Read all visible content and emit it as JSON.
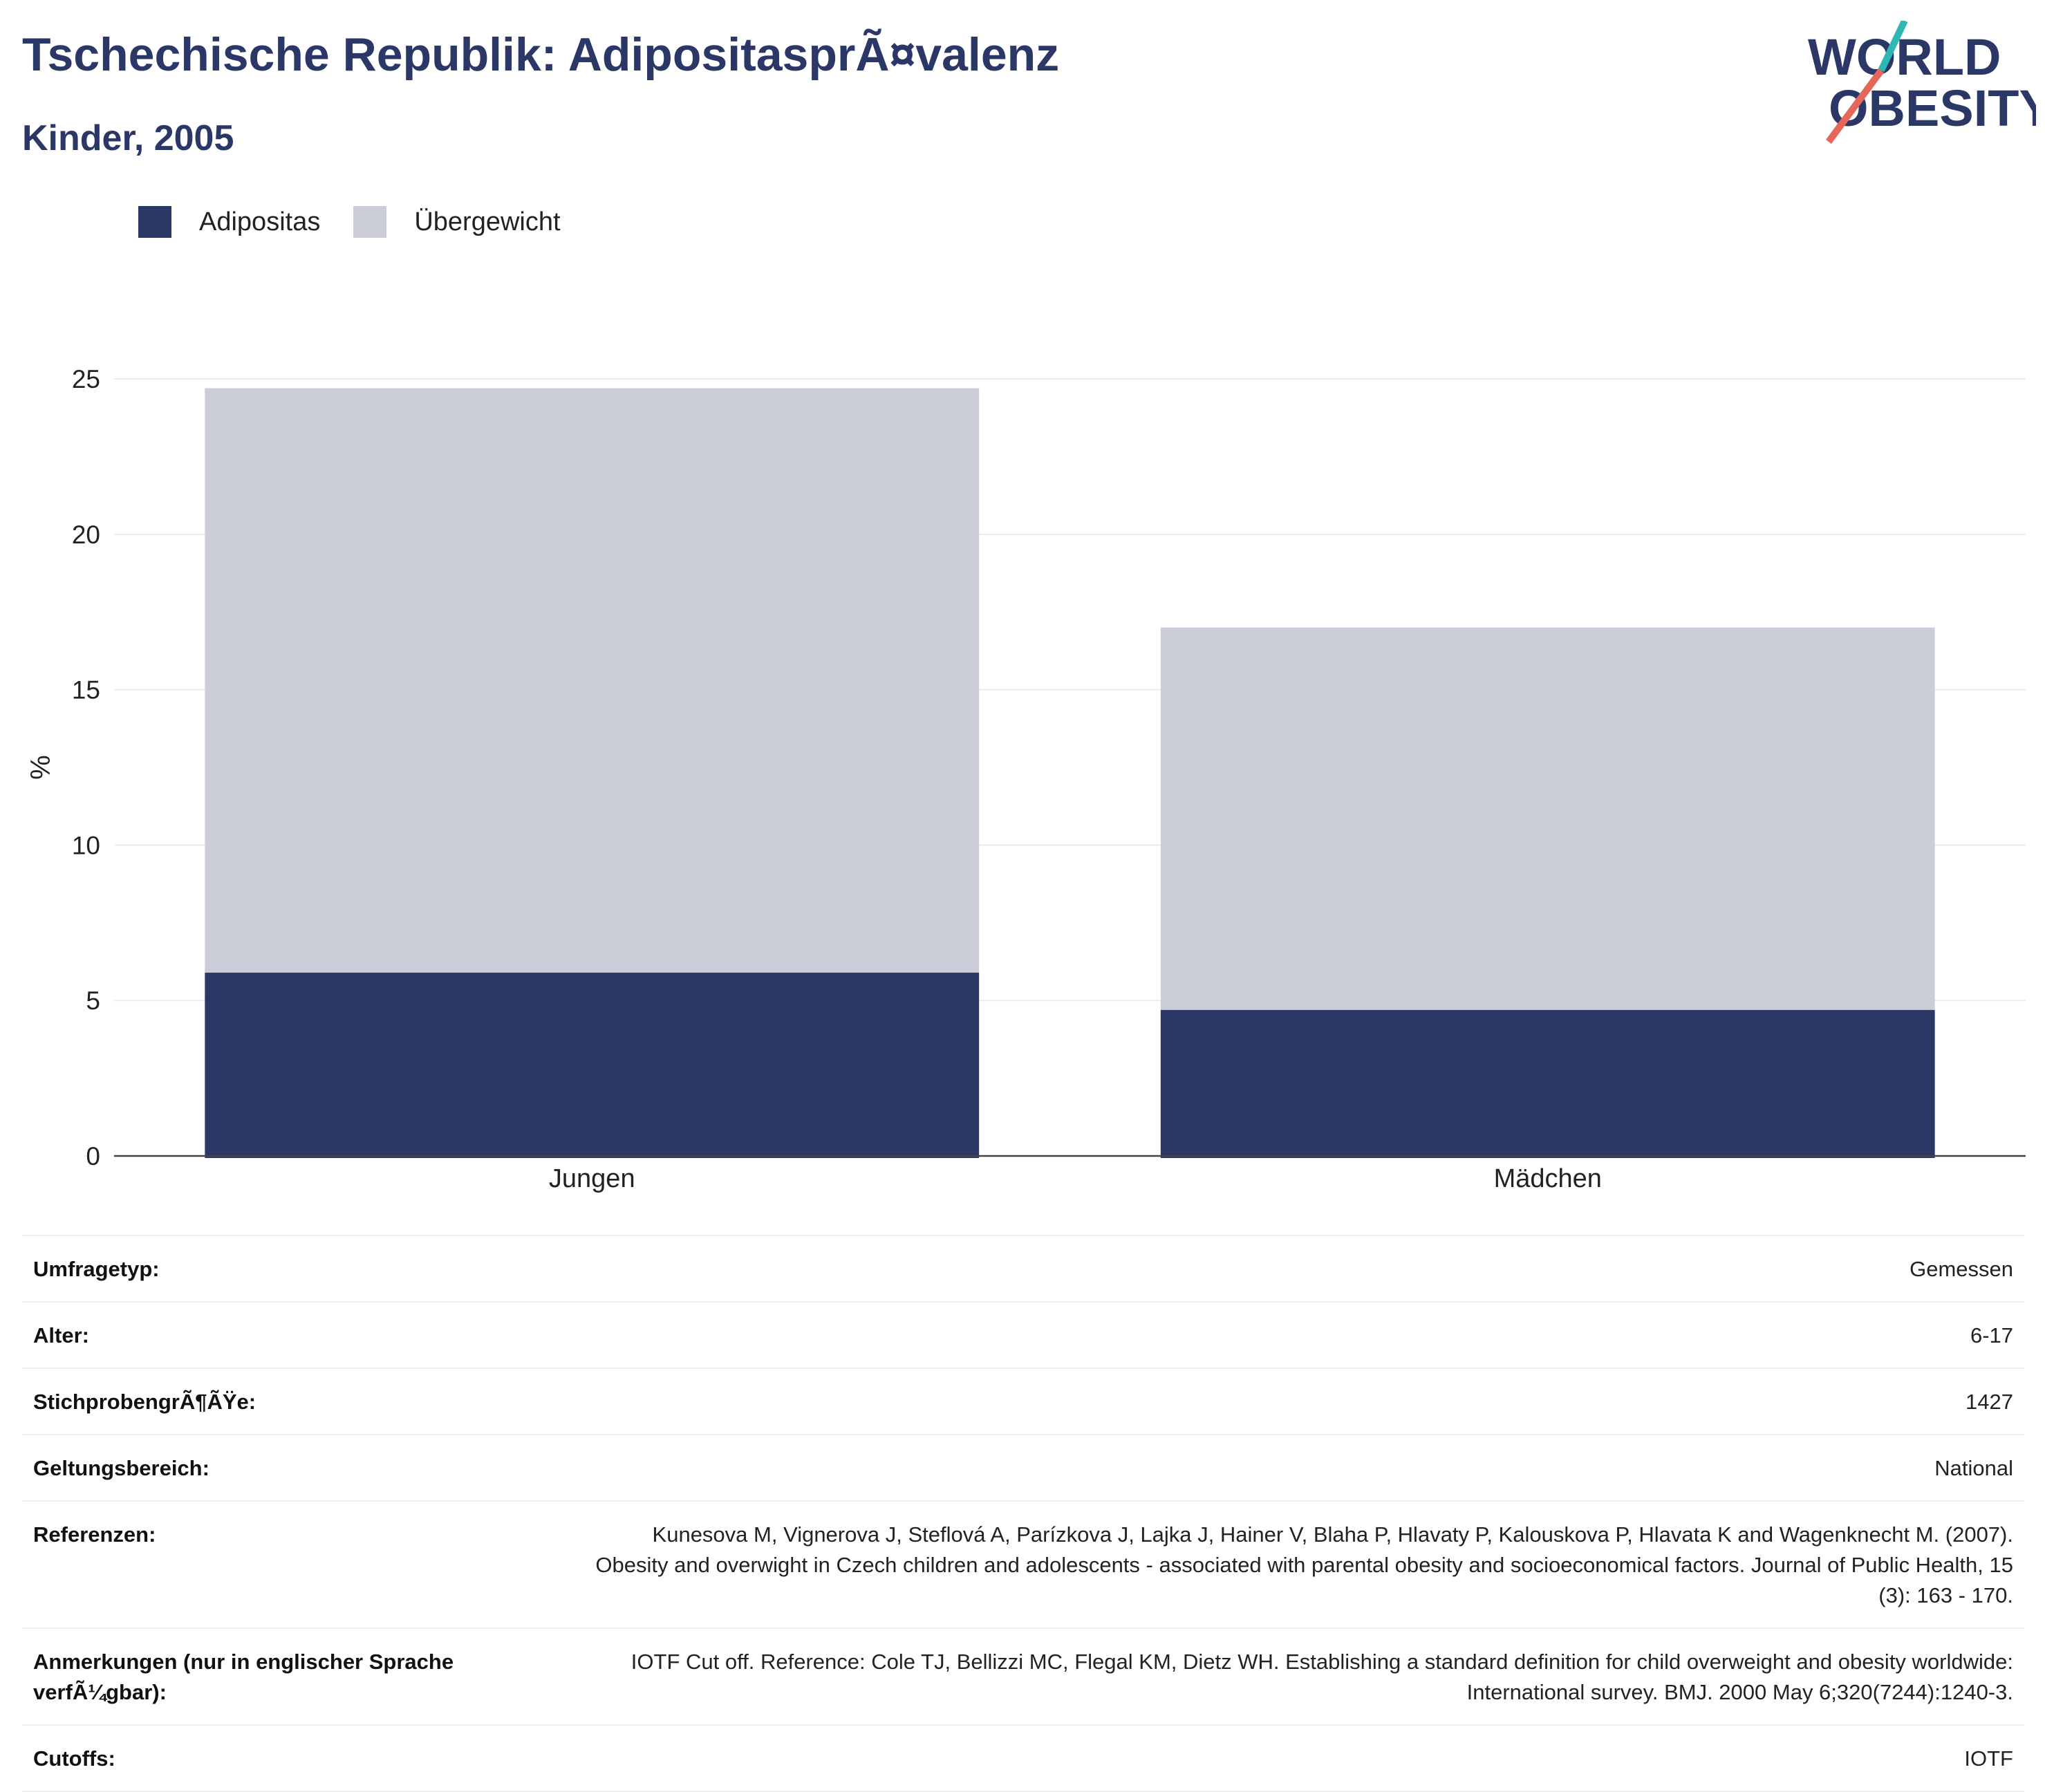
{
  "header": {
    "title": "Tschechische Republik: AdipositasprÃ¤valenz",
    "subtitle": "Kinder, 2005"
  },
  "logo": {
    "line1": "WORLD",
    "line2": "OBESITY",
    "accent_teal": "#2fb7b4",
    "accent_red": "#e5675a"
  },
  "legend": [
    {
      "label": "Adipositas",
      "color": "#2b3766"
    },
    {
      "label": "Übergewicht",
      "color": "#cbcdd8"
    }
  ],
  "chart_data": {
    "type": "bar",
    "stacked": true,
    "categories": [
      "Jungen",
      "Mädchen"
    ],
    "series": [
      {
        "name": "Adipositas",
        "values": [
          5.9,
          4.7
        ],
        "color": "#2b3766"
      },
      {
        "name": "Übergewicht",
        "values": [
          18.8,
          12.3
        ],
        "color": "#cbcdd8"
      }
    ],
    "ylabel": "%",
    "xlabel": "",
    "ylim": [
      0,
      25
    ],
    "yticks": [
      0,
      5,
      10,
      15,
      20,
      25
    ],
    "grid": true,
    "legend_position": "top-left"
  },
  "metadata": [
    {
      "label": "Umfragetyp:",
      "value": "Gemessen"
    },
    {
      "label": "Alter:",
      "value": "6-17"
    },
    {
      "label": "StichprobengrÃ¶ÃŸe:",
      "value": "1427"
    },
    {
      "label": "Geltungsbereich:",
      "value": "National"
    },
    {
      "label": "Referenzen:",
      "value": "Kunesova M, Vignerova J, Steflová A, Parízkova J, Lajka J, Hainer V, Blaha P, Hlavaty P, Kalouskova P, Hlavata K and Wagenknecht M. (2007). Obesity and overwight in Czech children and adolescents - associated with parental obesity and socioeconomical factors. Journal of Public Health, 15 (3): 163 - 170."
    },
    {
      "label": "Anmerkungen (nur in englischer Sprache verfÃ¼gbar):",
      "value": "IOTF Cut off. Reference: Cole TJ, Bellizzi MC, Flegal KM, Dietz WH. Establishing a standard definition for child overweight and obesity worldwide: International survey. BMJ. 2000 May 6;320(7244):1240-3."
    },
    {
      "label": "Cutoffs:",
      "value": "IOTF"
    }
  ]
}
